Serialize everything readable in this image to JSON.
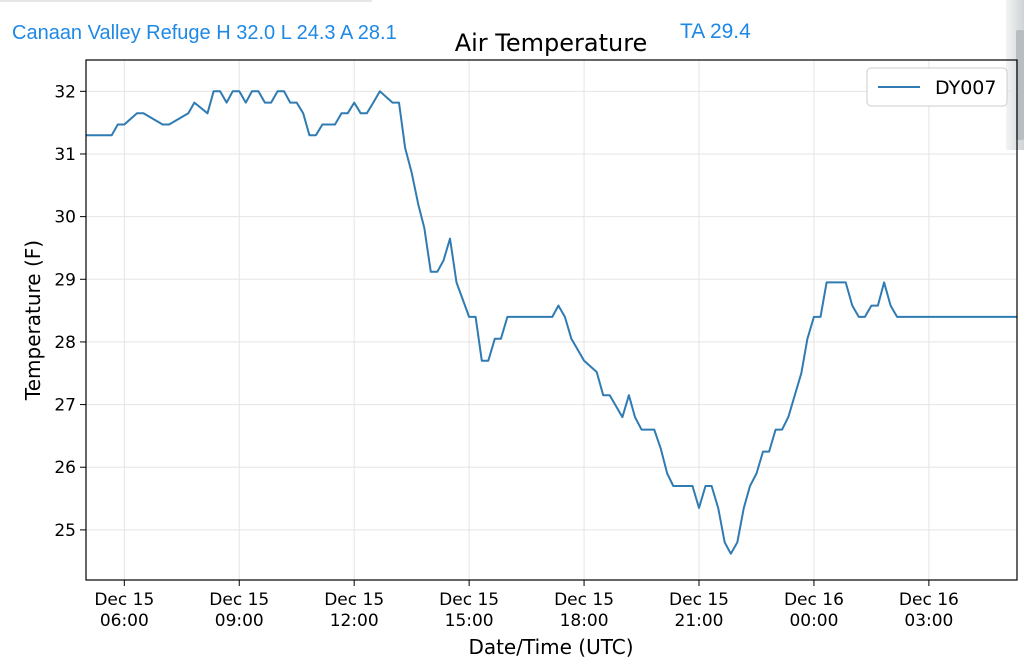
{
  "header": {
    "station_summary": "Canaan Valley Refuge H 32.0 L 24.3 A 28.1",
    "ta_readout": "TA 29.4"
  },
  "colors": {
    "accent_text": "#1e88e5",
    "series_line": "#2f7bb2",
    "grid": "#e5e5e5"
  },
  "chart_data": {
    "type": "line",
    "title": "Air Temperature",
    "xlabel": "Date/Time (UTC)",
    "ylabel": "Temperature (F)",
    "ylim": [
      24.2,
      32.5
    ],
    "xlim_hours": [
      4.0,
      28.3
    ],
    "grid": true,
    "legend_position": "top-right",
    "yticks": [
      25,
      26,
      27,
      28,
      29,
      30,
      31,
      32
    ],
    "xticks": [
      {
        "h": 5,
        "label1": "Dec 15",
        "label2": "06:00"
      },
      {
        "h": 8,
        "label1": "Dec 15",
        "label2": "09:00"
      },
      {
        "h": 11,
        "label1": "Dec 15",
        "label2": "12:00"
      },
      {
        "h": 14,
        "label1": "Dec 15",
        "label2": "15:00"
      },
      {
        "h": 17,
        "label1": "Dec 15",
        "label2": "18:00"
      },
      {
        "h": 20,
        "label1": "Dec 15",
        "label2": "21:00"
      },
      {
        "h": 23,
        "label1": "Dec 16",
        "label2": "00:00"
      },
      {
        "h": 26,
        "label1": "Dec 16",
        "label2": "03:00"
      }
    ],
    "series": [
      {
        "name": "DY007",
        "x": [
          4.0,
          4.67,
          4.83,
          5.0,
          5.33,
          5.5,
          6.0,
          6.17,
          6.67,
          6.83,
          7.17,
          7.33,
          7.5,
          7.67,
          7.83,
          8.0,
          8.17,
          8.33,
          8.5,
          8.67,
          8.83,
          9.0,
          9.17,
          9.33,
          9.5,
          9.67,
          9.83,
          10.0,
          10.17,
          10.5,
          10.67,
          10.83,
          11.0,
          11.17,
          11.33,
          11.5,
          11.67,
          12.0,
          12.17,
          12.33,
          12.5,
          12.67,
          12.83,
          13.0,
          13.17,
          13.33,
          13.5,
          13.67,
          14.0,
          14.17,
          14.33,
          14.5,
          14.67,
          14.83,
          15.0,
          15.17,
          15.33,
          15.5,
          15.67,
          15.83,
          16.0,
          16.17,
          16.33,
          16.5,
          16.67,
          17.0,
          17.33,
          17.5,
          17.67,
          18.0,
          18.17,
          18.33,
          18.5,
          18.67,
          18.83,
          19.0,
          19.17,
          19.33,
          19.5,
          19.67,
          19.83,
          20.0,
          20.17,
          20.33,
          20.5,
          20.67,
          20.83,
          21.0,
          21.17,
          21.33,
          21.5,
          21.67,
          21.83,
          22.0,
          22.17,
          22.33,
          22.5,
          22.67,
          22.83,
          23.0,
          23.17,
          23.33,
          23.5,
          23.67,
          23.83,
          24.0,
          24.17,
          24.33,
          24.5,
          24.67,
          24.83,
          25.0,
          25.17,
          25.33,
          25.5,
          25.67,
          25.83,
          26.0,
          26.17,
          26.33,
          26.5,
          26.67,
          27.0,
          28.3
        ],
        "y": [
          31.3,
          31.3,
          31.47,
          31.47,
          31.65,
          31.65,
          31.47,
          31.47,
          31.65,
          31.82,
          31.65,
          32.0,
          32.0,
          31.82,
          32.0,
          32.0,
          31.82,
          32.0,
          32.0,
          31.82,
          31.82,
          32.0,
          32.0,
          31.82,
          31.82,
          31.65,
          31.3,
          31.3,
          31.47,
          31.47,
          31.65,
          31.65,
          31.82,
          31.65,
          31.65,
          31.82,
          32.0,
          31.82,
          31.82,
          31.1,
          30.7,
          30.2,
          29.82,
          29.12,
          29.12,
          29.3,
          29.65,
          28.95,
          28.4,
          28.4,
          27.7,
          27.7,
          28.05,
          28.05,
          28.4,
          28.4,
          28.4,
          28.4,
          28.4,
          28.4,
          28.4,
          28.4,
          28.58,
          28.4,
          28.05,
          27.7,
          27.52,
          27.15,
          27.15,
          26.8,
          27.15,
          26.8,
          26.6,
          26.6,
          26.6,
          26.3,
          25.9,
          25.7,
          25.7,
          25.7,
          25.7,
          25.35,
          25.7,
          25.7,
          25.35,
          24.8,
          24.62,
          24.8,
          25.35,
          25.7,
          25.9,
          26.25,
          26.25,
          26.6,
          26.6,
          26.8,
          27.15,
          27.5,
          28.05,
          28.4,
          28.4,
          28.95,
          28.95,
          28.95,
          28.95,
          28.58,
          28.4,
          28.4,
          28.58,
          28.58,
          28.95,
          28.58,
          28.4,
          28.4,
          28.4,
          28.4,
          28.4,
          28.4,
          28.4,
          28.4,
          28.4,
          28.4,
          28.4,
          28.4
        ]
      }
    ]
  }
}
